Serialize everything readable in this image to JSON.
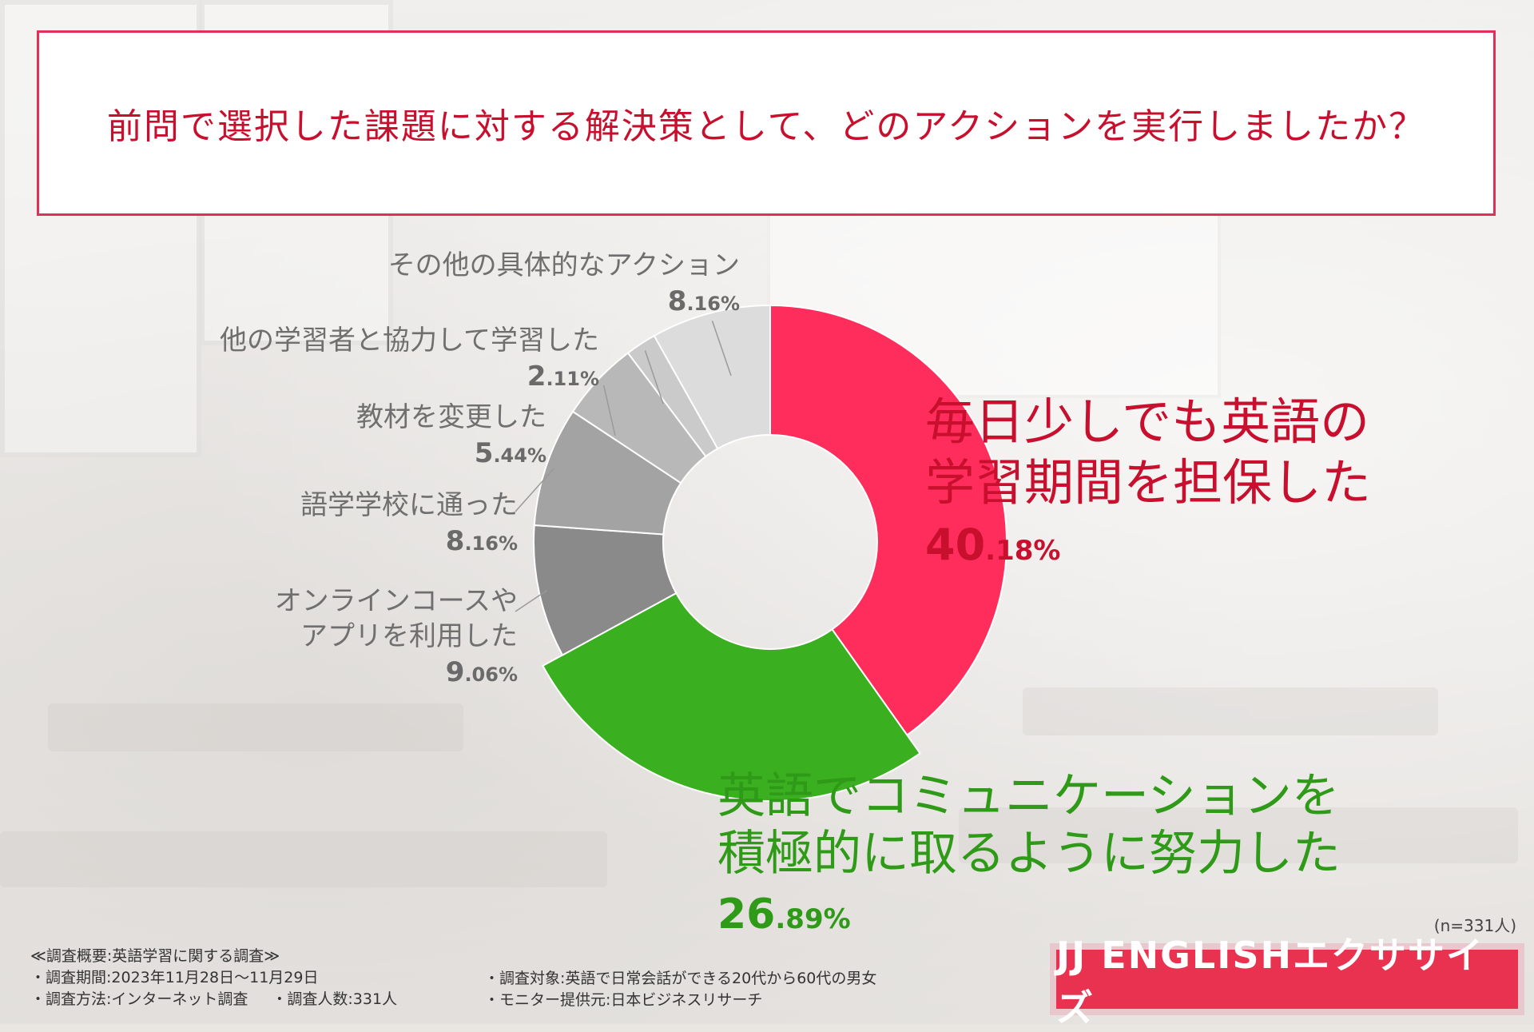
{
  "title": "前問で選択した課題に対する解決策として、どのアクションを実行しましたか？",
  "sample_size": "(n=331人)",
  "chart_data": {
    "type": "pie",
    "donut": true,
    "sort": "descending clockwise from top",
    "slices": [
      {
        "label_lines": [
          "毎日少しでも英語の",
          "学習期間を担保した"
        ],
        "value": 40.18,
        "pct_int": "40",
        "pct_dec": ".18%",
        "color": "#ff2d5b"
      },
      {
        "label_lines": [
          "英語でコミュニケーションを",
          "積極的に取るように努力した"
        ],
        "value": 26.89,
        "pct_int": "26",
        "pct_dec": ".89%",
        "color": "#3aaf1f"
      },
      {
        "label_lines": [
          "オンラインコースや",
          "アプリを利用した"
        ],
        "value": 9.06,
        "pct_int": "9",
        "pct_dec": ".06%",
        "color": "#8a8a8a"
      },
      {
        "label_lines": [
          "語学学校に通った"
        ],
        "value": 8.16,
        "pct_int": "8",
        "pct_dec": ".16%",
        "color": "#a3a3a3"
      },
      {
        "label_lines": [
          "教材を変更した"
        ],
        "value": 5.44,
        "pct_int": "5",
        "pct_dec": ".44%",
        "color": "#b8b8b8"
      },
      {
        "label_lines": [
          "他の学習者と協力して学習した"
        ],
        "value": 2.11,
        "pct_int": "2",
        "pct_dec": ".11%",
        "color": "#cacaca"
      },
      {
        "label_lines": [
          "その他の具体的なアクション"
        ],
        "value": 8.16,
        "pct_int": "8",
        "pct_dec": ".16%",
        "color": "#dcdcdc"
      }
    ]
  },
  "overview": {
    "heading": "≪調査概要:英語学習に関する調査≫",
    "period": "・調査期間:2023年11月28日〜11月29日",
    "method": "・調査方法:インターネット調査",
    "count": "・調査人数:331人",
    "target": "・調査対象:英語で日常会話ができる20代から60代の男女",
    "provider": "・モニター提供元:日本ビジネスリサーチ"
  },
  "logo": "JJ ENGLISHエクササイズ"
}
